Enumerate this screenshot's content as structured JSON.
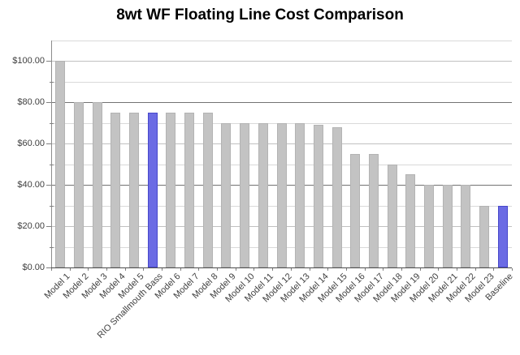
{
  "chart_data": {
    "type": "bar",
    "title": "8wt WF Floating Line Cost Comparison",
    "categories": [
      "Model 1",
      "Model 2",
      "Model 3",
      "Model 4",
      "Model 5",
      "RIO Smallmouth Bass",
      "Model 6",
      "Model 7",
      "Model 8",
      "Model 9",
      "Model 10",
      "Model 11",
      "Model 12",
      "Model 13",
      "Model 14",
      "Model 15",
      "Model 16",
      "Model 17",
      "Model 18",
      "Model 19",
      "Model 20",
      "Model 21",
      "Model 22",
      "Model 23",
      "Baseline"
    ],
    "values": [
      100,
      80,
      80,
      75,
      75,
      75,
      75,
      75,
      75,
      70,
      70,
      70,
      70,
      70,
      69,
      68,
      55,
      55,
      50,
      45,
      40,
      40,
      40,
      30,
      30
    ],
    "highlighted_categories": [
      "RIO Smallmouth Bass",
      "Baseline"
    ],
    "xlabel": "",
    "ylabel": "",
    "ylim": [
      0,
      110
    ],
    "yticks": [
      {
        "value": 0,
        "label": "$0.00"
      },
      {
        "value": 20,
        "label": "$20.00"
      },
      {
        "value": 40,
        "label": "$40.00"
      },
      {
        "value": 60,
        "label": "$60.00"
      },
      {
        "value": 80,
        "label": "$80.00"
      },
      {
        "value": 100,
        "label": "$100.00"
      }
    ],
    "minor_gridline_interval": 10,
    "major_tick_interval": 20,
    "legend": "none",
    "grid": "on",
    "colors": {
      "bar": "#c3c3c3",
      "bar_border": "#b3b3b3",
      "highlight": "#6b6be4",
      "highlight_border": "#4747cb",
      "x_axis": "#4d4d4d",
      "y_axis": "#8c8c8c",
      "tick": "#808080",
      "gridline_minor": "#d9d9d9",
      "gridline_major": "#c0c0c0",
      "gridline_dark": "#737373",
      "label_text": "#3f3f3f",
      "title_text": "#000000",
      "background": "#ffffff"
    }
  }
}
